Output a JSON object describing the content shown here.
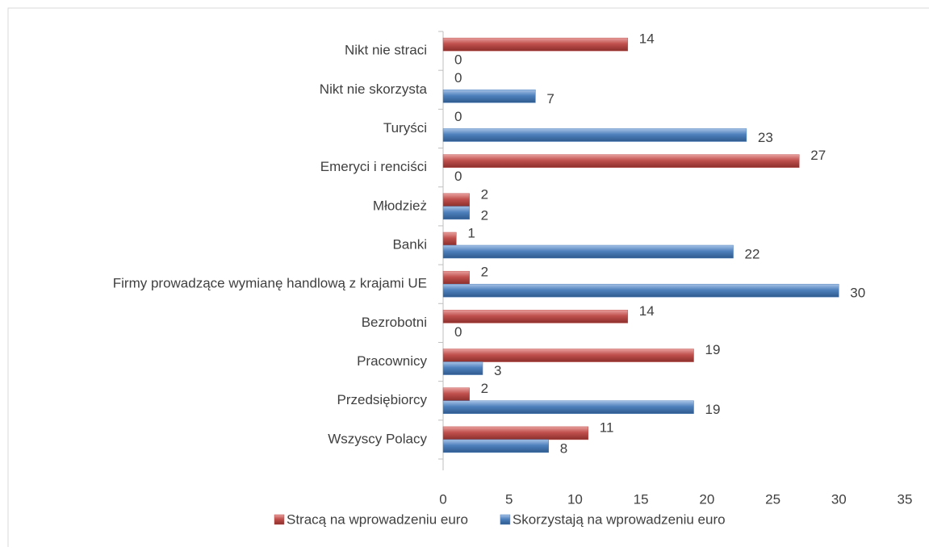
{
  "chart_data": {
    "type": "hbar",
    "categories": [
      "Nikt nie straci",
      "Nikt nie skorzysta",
      "Turyści",
      "Emeryci i renciści",
      "Młodzież",
      "Banki",
      "Firmy prowadzące wymianę handlową z krajami UE",
      "Bezrobotni",
      "Pracownicy",
      "Przedsiębiorcy",
      "Wszyscy Polacy"
    ],
    "series": [
      {
        "name": "Stracą na wprowadzeniu euro",
        "color": "#c0504d",
        "values": [
          14,
          0,
          0,
          27,
          2,
          1,
          2,
          14,
          19,
          2,
          11
        ]
      },
      {
        "name": "Skorzystają na wprowadzeniu euro",
        "color": "#4f81bd",
        "values": [
          0,
          7,
          23,
          0,
          2,
          22,
          30,
          0,
          3,
          19,
          8
        ]
      }
    ],
    "xlim": [
      0,
      35
    ],
    "xticks": [
      0,
      5,
      10,
      15,
      20,
      25,
      30,
      35
    ],
    "grid": false,
    "legend": "bottom"
  }
}
